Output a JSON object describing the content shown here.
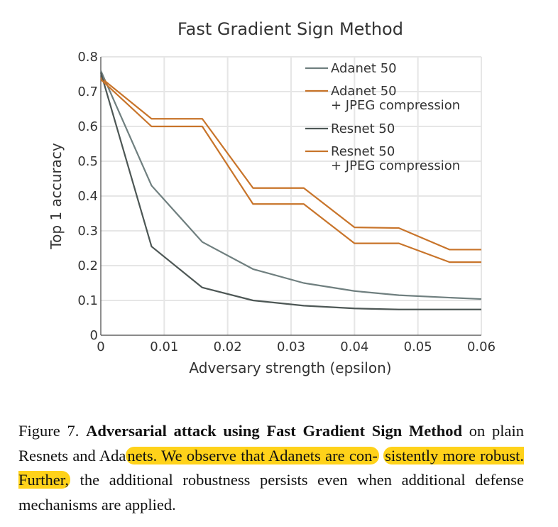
{
  "chart_data": {
    "type": "line",
    "title": "Fast Gradient Sign Method",
    "xlabel": "Adversary strength (epsilon)",
    "ylabel": "Top 1 accuracy",
    "xlim": [
      0,
      0.06
    ],
    "ylim": [
      0,
      0.8
    ],
    "x_ticks": [
      "0",
      "0.01",
      "0.02",
      "0.03",
      "0.04",
      "0.05",
      "0.06"
    ],
    "y_ticks": [
      "0",
      "0.1",
      "0.2",
      "0.3",
      "0.4",
      "0.5",
      "0.6",
      "0.7",
      "0.8"
    ],
    "grid": true,
    "legend_position": "top-right",
    "x": [
      0,
      0.008,
      0.016,
      0.024,
      0.032,
      0.04,
      0.047,
      0.055,
      0.06
    ],
    "series": [
      {
        "name": "Adanet 50",
        "color": "#6f7f7f",
        "values": [
          0.76,
          0.43,
          0.268,
          0.19,
          0.15,
          0.127,
          0.115,
          0.108,
          0.104
        ]
      },
      {
        "name": "Adanet 50\n+ JPEG compression",
        "color": "#c8742a",
        "values": [
          0.74,
          0.622,
          0.622,
          0.423,
          0.423,
          0.31,
          0.308,
          0.246,
          0.246
        ]
      },
      {
        "name": "Resnet 50",
        "color": "#4d5755",
        "values": [
          0.755,
          0.255,
          0.137,
          0.1,
          0.085,
          0.077,
          0.074,
          0.074,
          0.074
        ]
      },
      {
        "name": "Resnet 50\n+ JPEG compression",
        "color": "#c8742a",
        "values": [
          0.735,
          0.6,
          0.6,
          0.377,
          0.377,
          0.264,
          0.264,
          0.21,
          0.21
        ]
      }
    ]
  },
  "caption": {
    "figure_label": "Figure 7.",
    "title": "Adversarial attack using Fast Gradient Sign Method",
    "text_1": "on plain Resnets and Ada",
    "text_2": "nets.  We observe that Adanets are con-",
    "text_3": "sistently more robust.  Further,",
    "text_4": " the additional robustness persists even when additional defense mechanisms are applied.",
    "highlight_color": "#ffd21a"
  }
}
